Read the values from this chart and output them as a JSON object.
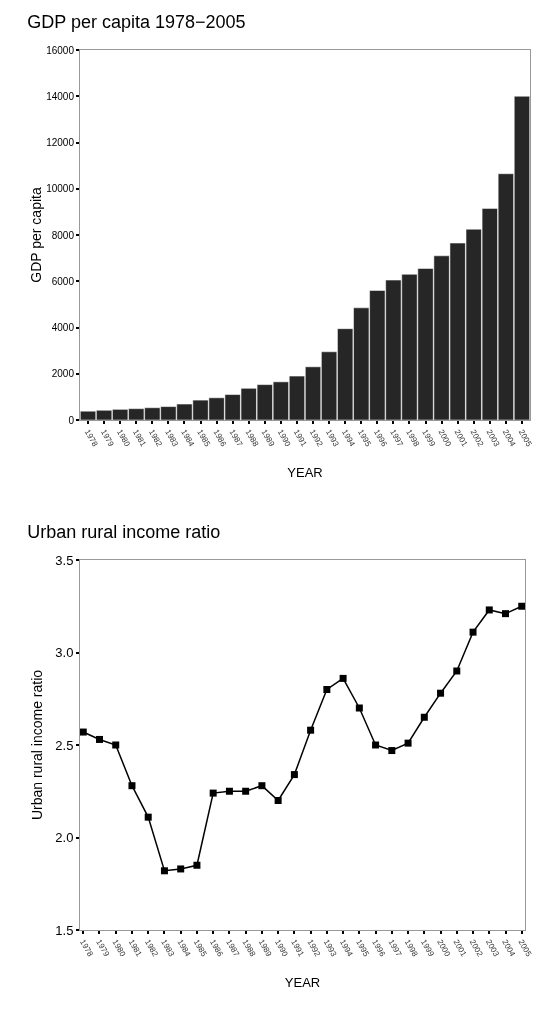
{
  "chart_data": [
    {
      "type": "bar",
      "title": "GDP per capita 1978−2005",
      "xlabel": "YEAR",
      "ylabel": "GDP per capita",
      "categories": [
        "1978",
        "1979",
        "1980",
        "1981",
        "1982",
        "1983",
        "1984",
        "1985",
        "1986",
        "1987",
        "1988",
        "1989",
        "1990",
        "1991",
        "1992",
        "1993",
        "1994",
        "1995",
        "1996",
        "1997",
        "1998",
        "1999",
        "2000",
        "2001",
        "2002",
        "2003",
        "2004",
        "2005"
      ],
      "values": [
        380,
        420,
        460,
        490,
        530,
        580,
        690,
        860,
        960,
        1100,
        1370,
        1530,
        1650,
        1900,
        2300,
        2950,
        3950,
        4850,
        5600,
        6050,
        6300,
        6550,
        7100,
        7650,
        8250,
        9150,
        10650,
        14000
      ],
      "color": "#262626",
      "ylim": [
        0,
        16000
      ],
      "yticks": [
        0,
        2000,
        4000,
        6000,
        8000,
        10000,
        12000,
        14000,
        16000
      ],
      "grid": false,
      "legend": false
    },
    {
      "type": "line",
      "title": "Urban rural income ratio",
      "xlabel": "YEAR",
      "ylabel": "Urban rural income ratio",
      "categories": [
        "1978",
        "1979",
        "1980",
        "1981",
        "1982",
        "1983",
        "1984",
        "1985",
        "1986",
        "1987",
        "1988",
        "1989",
        "1990",
        "1991",
        "1992",
        "1993",
        "1994",
        "1995",
        "1996",
        "1997",
        "1998",
        "1999",
        "2000",
        "2001",
        "2002",
        "2003",
        "2004",
        "2005"
      ],
      "values": [
        2.57,
        2.53,
        2.5,
        2.28,
        2.11,
        1.82,
        1.83,
        1.85,
        2.24,
        2.25,
        2.25,
        2.28,
        2.2,
        2.34,
        2.58,
        2.8,
        2.86,
        2.7,
        2.5,
        2.47,
        2.51,
        2.65,
        2.78,
        2.9,
        3.11,
        3.23,
        3.21,
        3.25
      ],
      "color": "#000000",
      "marker": "square",
      "line_style": "solid",
      "ylim": [
        1.5,
        3.5
      ],
      "yticks": [
        {
          "value": 1.5,
          "label": "1.5"
        },
        {
          "value": 2,
          "label": "2.0"
        },
        {
          "value": 2.5,
          "label": "2.5"
        },
        {
          "value": 3,
          "label": "3.0"
        },
        {
          "value": 3.5,
          "label": "3.5"
        }
      ],
      "grid": false,
      "legend": false
    }
  ]
}
